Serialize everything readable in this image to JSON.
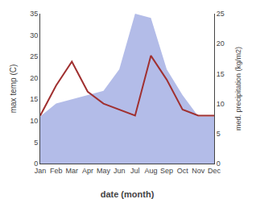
{
  "chart_data": {
    "type": "line",
    "categories": [
      "Jan",
      "Feb",
      "Mar",
      "Apr",
      "May",
      "Jun",
      "Jul",
      "Aug",
      "Sep",
      "Oct",
      "Nov",
      "Dec"
    ],
    "series": [
      {
        "type": "area",
        "color": "#b3bce8",
        "values": [
          11,
          14,
          15,
          16,
          17,
          22,
          35,
          34,
          22,
          16,
          11,
          11
        ]
      },
      {
        "type": "line",
        "color": "#a03030",
        "axis": "y2",
        "values": [
          8,
          13,
          17,
          12,
          10,
          9,
          8,
          18,
          14,
          9,
          8,
          8
        ]
      }
    ],
    "xlabel": "date (month)",
    "ylabel": "max temp (C)",
    "y2label": "med. precipitation (kg/m2)",
    "ylim": [
      0,
      35
    ],
    "yticks": [
      0,
      5,
      10,
      15,
      20,
      25,
      30,
      35
    ],
    "y2lim": [
      0,
      25
    ],
    "y2ticks": [
      0,
      5,
      10,
      15,
      20,
      25
    ],
    "grid": false
  }
}
